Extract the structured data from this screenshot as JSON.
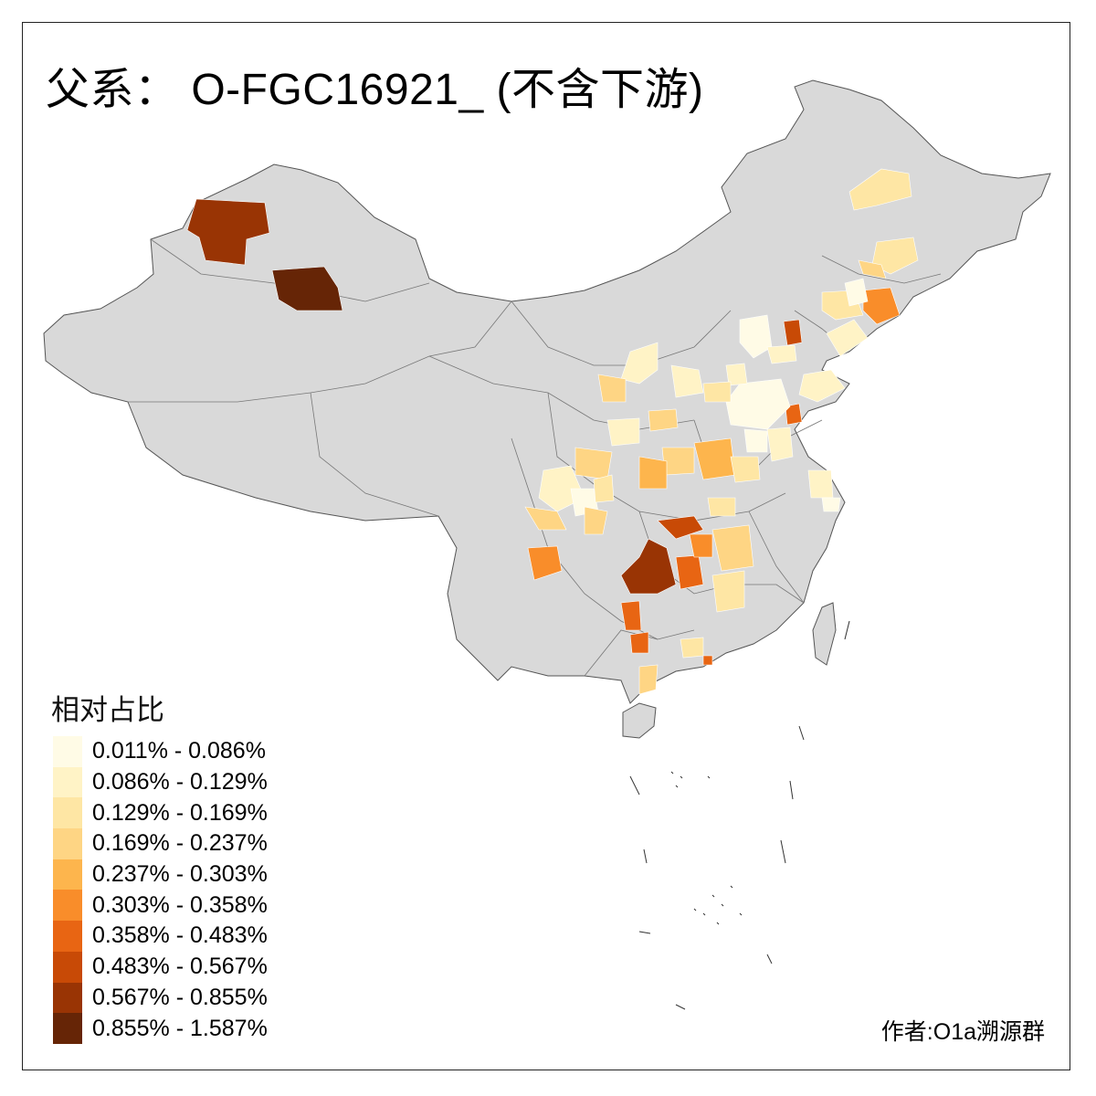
{
  "title": "父系： O-FGC16921_ (不含下游)",
  "author": "作者:O1a溯源群",
  "chart_data": {
    "type": "choropleth",
    "legend_title": "相对占比",
    "legend_position": "bottom-left",
    "no_data_color": "#d9d9d9",
    "bins": [
      {
        "label": "0.011% - 0.086%",
        "min": 0.011,
        "max": 0.086,
        "color": "#fffbe6"
      },
      {
        "label": "0.086% - 0.129%",
        "min": 0.086,
        "max": 0.129,
        "color": "#fff3c6"
      },
      {
        "label": "0.129% - 0.169%",
        "min": 0.129,
        "max": 0.169,
        "color": "#fee6a4"
      },
      {
        "label": "0.169% - 0.237%",
        "min": 0.169,
        "max": 0.237,
        "color": "#fed584"
      },
      {
        "label": "0.237% - 0.303%",
        "min": 0.237,
        "max": 0.303,
        "color": "#fdb54d"
      },
      {
        "label": "0.303% - 0.358%",
        "min": 0.303,
        "max": 0.358,
        "color": "#f98d2a"
      },
      {
        "label": "0.358% - 0.483%",
        "min": 0.358,
        "max": 0.483,
        "color": "#e86513"
      },
      {
        "label": "0.483% - 0.567%",
        "min": 0.483,
        "max": 0.567,
        "color": "#c84a06"
      },
      {
        "label": "0.567% - 0.855%",
        "min": 0.567,
        "max": 0.855,
        "color": "#993404"
      },
      {
        "label": "0.855% - 1.587%",
        "min": 0.855,
        "max": 1.587,
        "color": "#662506"
      }
    ]
  }
}
